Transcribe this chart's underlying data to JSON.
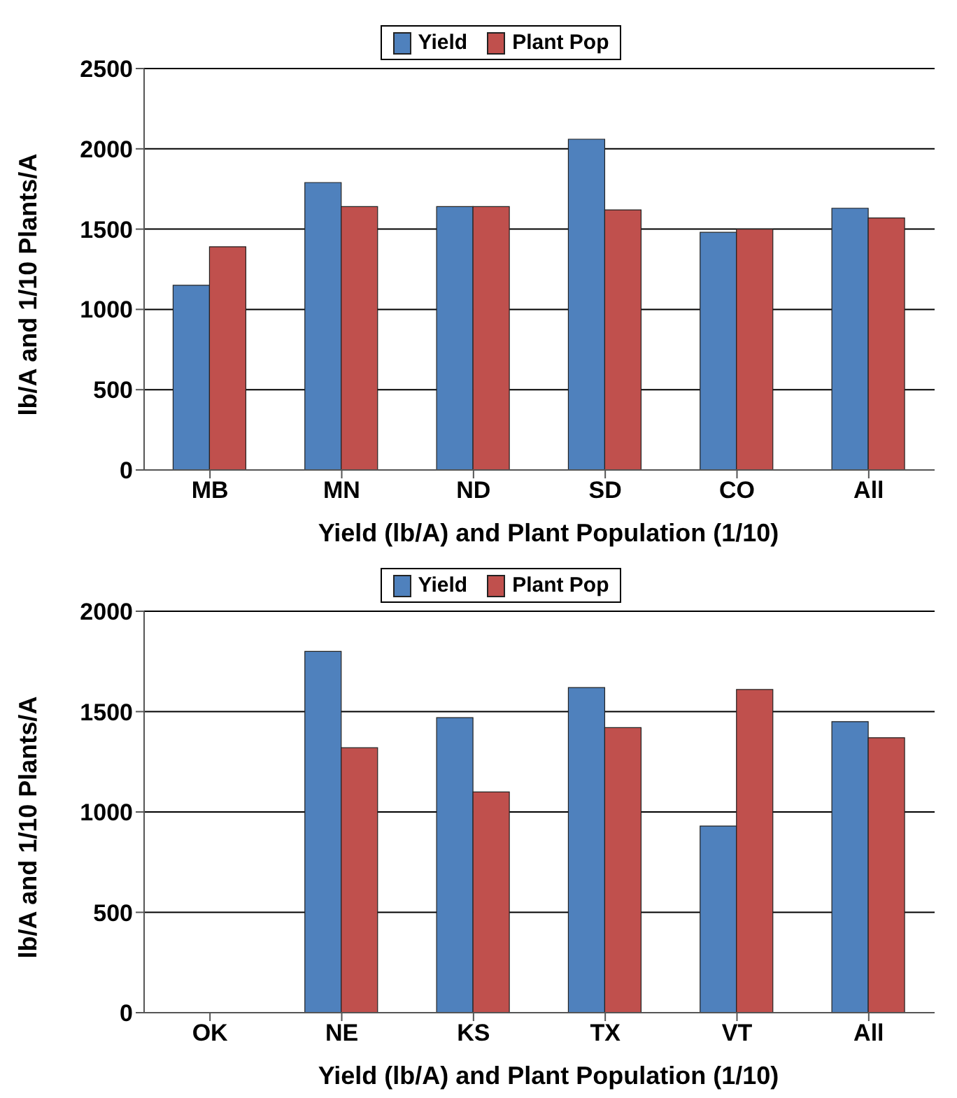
{
  "chart_data": [
    {
      "type": "bar",
      "xlabel": "Yield (lb/A) and Plant Population (1/10)",
      "ylabel": "lb/A and 1/10 Plants/A",
      "categories": [
        "MB",
        "MN",
        "ND",
        "SD",
        "CO",
        "All"
      ],
      "series": [
        {
          "name": "Yield",
          "color": "#4f81bd",
          "values": [
            1150,
            1790,
            1640,
            2060,
            1480,
            1630
          ]
        },
        {
          "name": "Plant Pop",
          "color": "#c0504d",
          "values": [
            1390,
            1640,
            1640,
            1620,
            1500,
            1570
          ]
        }
      ],
      "ylim": [
        0,
        2500
      ],
      "yticks": [
        0,
        500,
        1000,
        1500,
        2000,
        2500
      ],
      "grid": "y",
      "legend": "top"
    },
    {
      "type": "bar",
      "xlabel": "Yield (lb/A) and Plant Population (1/10)",
      "ylabel": "lb/A and 1/10 Plants/A",
      "categories": [
        "OK",
        "NE",
        "KS",
        "TX",
        "VT",
        "All"
      ],
      "series": [
        {
          "name": "Yield",
          "color": "#4f81bd",
          "values": [
            0,
            1800,
            1470,
            1620,
            930,
            1450
          ]
        },
        {
          "name": "Plant Pop",
          "color": "#c0504d",
          "values": [
            0,
            1320,
            1100,
            1420,
            1610,
            1370
          ]
        }
      ],
      "ylim": [
        0,
        2000
      ],
      "yticks": [
        0,
        500,
        1000,
        1500,
        2000
      ],
      "grid": "y",
      "legend": "top"
    }
  ]
}
